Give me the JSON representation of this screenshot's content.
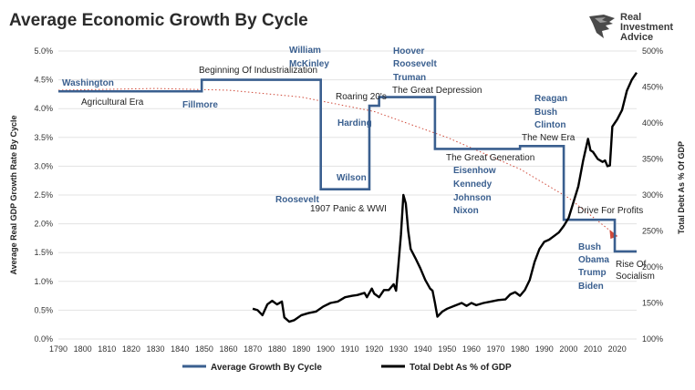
{
  "title": "Average Economic Growth By Cycle",
  "logo": {
    "line1": "Real",
    "line2": "Investment",
    "line3": "Advice"
  },
  "colors": {
    "growth": "#3a5f8f",
    "debt": "#000000",
    "trend": "#d04a3a",
    "gridline": "#e3e3e3"
  },
  "chart_data": {
    "type": "line",
    "title": "Average Economic Growth By Cycle",
    "ylabel": "Average Real GDP Growth Rate By Cycle",
    "y2label": "Total Debt As % Of GDP",
    "ylim": [
      0.0,
      5.0
    ],
    "y2lim": [
      100,
      500
    ],
    "xlim": [
      1790,
      2028
    ],
    "x_ticks": [
      "1790",
      "1800",
      "1810",
      "1820",
      "1830",
      "1840",
      "1850",
      "1860",
      "1870",
      "1880",
      "1890",
      "1900",
      "1910",
      "1920",
      "1930",
      "1940",
      "1950",
      "1960",
      "1970",
      "1980",
      "1990",
      "2000",
      "2010",
      "2020"
    ],
    "y_ticks": [
      "0.0%",
      "0.5%",
      "1.0%",
      "1.5%",
      "2.0%",
      "2.5%",
      "3.0%",
      "3.5%",
      "4.0%",
      "4.5%",
      "5.0%"
    ],
    "y2_ticks": [
      "100%",
      "150%",
      "200%",
      "250%",
      "300%",
      "350%",
      "400%",
      "450%",
      "500%"
    ],
    "legend_position": "bottom",
    "grid": true,
    "series": [
      {
        "name": "Average Growth By Cycle",
        "axis": "left",
        "points": [
          [
            1790,
            4.3
          ],
          [
            1849,
            4.3
          ],
          [
            1849,
            4.5
          ],
          [
            1898,
            4.5
          ],
          [
            1898,
            2.6
          ],
          [
            1918,
            2.6
          ],
          [
            1918,
            4.05
          ],
          [
            1922,
            4.05
          ],
          [
            1922,
            4.2
          ],
          [
            1945,
            4.2
          ],
          [
            1945,
            3.3
          ],
          [
            1980,
            3.3
          ],
          [
            1980,
            3.35
          ],
          [
            1998,
            3.35
          ],
          [
            1998,
            2.07
          ],
          [
            2019,
            2.07
          ],
          [
            2019,
            1.52
          ],
          [
            2028,
            1.52
          ]
        ]
      },
      {
        "name": "Total Debt As % of GDP",
        "axis": "right",
        "points": [
          [
            1870,
            142
          ],
          [
            1872,
            140
          ],
          [
            1874,
            133
          ],
          [
            1876,
            148
          ],
          [
            1878,
            153
          ],
          [
            1880,
            148
          ],
          [
            1882,
            152
          ],
          [
            1883,
            130
          ],
          [
            1885,
            124
          ],
          [
            1887,
            126
          ],
          [
            1890,
            133
          ],
          [
            1893,
            136
          ],
          [
            1896,
            138
          ],
          [
            1899,
            145
          ],
          [
            1902,
            150
          ],
          [
            1905,
            152
          ],
          [
            1908,
            158
          ],
          [
            1911,
            160
          ],
          [
            1913,
            161
          ],
          [
            1916,
            164
          ],
          [
            1917,
            158
          ],
          [
            1919,
            170
          ],
          [
            1920,
            163
          ],
          [
            1922,
            158
          ],
          [
            1924,
            168
          ],
          [
            1926,
            168
          ],
          [
            1928,
            176
          ],
          [
            1929,
            167
          ],
          [
            1930,
            205
          ],
          [
            1931,
            245
          ],
          [
            1932,
            300
          ],
          [
            1933,
            288
          ],
          [
            1934,
            250
          ],
          [
            1935,
            225
          ],
          [
            1937,
            212
          ],
          [
            1939,
            198
          ],
          [
            1941,
            182
          ],
          [
            1943,
            170
          ],
          [
            1944,
            167
          ],
          [
            1945,
            150
          ],
          [
            1946,
            131
          ],
          [
            1948,
            138
          ],
          [
            1950,
            142
          ],
          [
            1953,
            146
          ],
          [
            1956,
            150
          ],
          [
            1958,
            146
          ],
          [
            1960,
            150
          ],
          [
            1962,
            147
          ],
          [
            1965,
            150
          ],
          [
            1968,
            152
          ],
          [
            1971,
            154
          ],
          [
            1974,
            155
          ],
          [
            1976,
            162
          ],
          [
            1978,
            165
          ],
          [
            1980,
            160
          ],
          [
            1982,
            168
          ],
          [
            1984,
            182
          ],
          [
            1986,
            207
          ],
          [
            1988,
            225
          ],
          [
            1990,
            235
          ],
          [
            1992,
            238
          ],
          [
            1994,
            243
          ],
          [
            1996,
            248
          ],
          [
            1998,
            257
          ],
          [
            2000,
            268
          ],
          [
            2002,
            290
          ],
          [
            2004,
            312
          ],
          [
            2006,
            348
          ],
          [
            2008,
            378
          ],
          [
            2009,
            362
          ],
          [
            2010,
            360
          ],
          [
            2012,
            350
          ],
          [
            2014,
            346
          ],
          [
            2015,
            348
          ],
          [
            2016,
            340
          ],
          [
            2017,
            341
          ],
          [
            2018,
            395
          ],
          [
            2020,
            405
          ],
          [
            2022,
            418
          ],
          [
            2024,
            445
          ],
          [
            2026,
            460
          ],
          [
            2028,
            470
          ]
        ]
      },
      {
        "name": "",
        "axis": "left",
        "style": "dotted-trend",
        "points": [
          [
            1790,
            4.32
          ],
          [
            1830,
            4.35
          ],
          [
            1860,
            4.32
          ],
          [
            1890,
            4.2
          ],
          [
            1920,
            3.95
          ],
          [
            1950,
            3.5
          ],
          [
            1980,
            2.95
          ],
          [
            2000,
            2.45
          ],
          [
            2018,
            1.85
          ]
        ]
      }
    ],
    "annotations": [
      {
        "text": "Washington",
        "style": "blue"
      },
      {
        "text": "Agricultural Era",
        "style": "dark"
      },
      {
        "text": "Fillmore",
        "style": "blue"
      },
      {
        "text": "Beginning Of Industrialization",
        "style": "dark"
      },
      {
        "text": "William",
        "style": "blue"
      },
      {
        "text": "McKinley",
        "style": "blue"
      },
      {
        "text": "Wilson",
        "style": "blue"
      },
      {
        "text": "Roosevelt",
        "style": "blue"
      },
      {
        "text": "1907 Panic & WWI",
        "style": "dark"
      },
      {
        "text": "Roaring 20's",
        "style": "dark"
      },
      {
        "text": "Harding",
        "style": "blue"
      },
      {
        "text": "Hoover",
        "style": "blue"
      },
      {
        "text": "Roosevelt",
        "style": "blue"
      },
      {
        "text": "Truman",
        "style": "blue"
      },
      {
        "text": "The Great Depression",
        "style": "dark"
      },
      {
        "text": "The Great Generation",
        "style": "dark"
      },
      {
        "text": "Eisenhow",
        "style": "blue"
      },
      {
        "text": "Kennedy",
        "style": "blue"
      },
      {
        "text": "Johnson",
        "style": "blue"
      },
      {
        "text": "Nixon",
        "style": "blue"
      },
      {
        "text": "Reagan",
        "style": "blue"
      },
      {
        "text": "Bush",
        "style": "blue"
      },
      {
        "text": "Clinton",
        "style": "blue"
      },
      {
        "text": "The New Era",
        "style": "dark"
      },
      {
        "text": "Drive For Profits",
        "style": "dark"
      },
      {
        "text": "Bush",
        "style": "blue"
      },
      {
        "text": "Obama",
        "style": "blue"
      },
      {
        "text": "Trump",
        "style": "blue"
      },
      {
        "text": "Biden",
        "style": "blue"
      },
      {
        "text": "Rise Of",
        "style": "dark"
      },
      {
        "text": "Socialism",
        "style": "dark"
      }
    ]
  }
}
